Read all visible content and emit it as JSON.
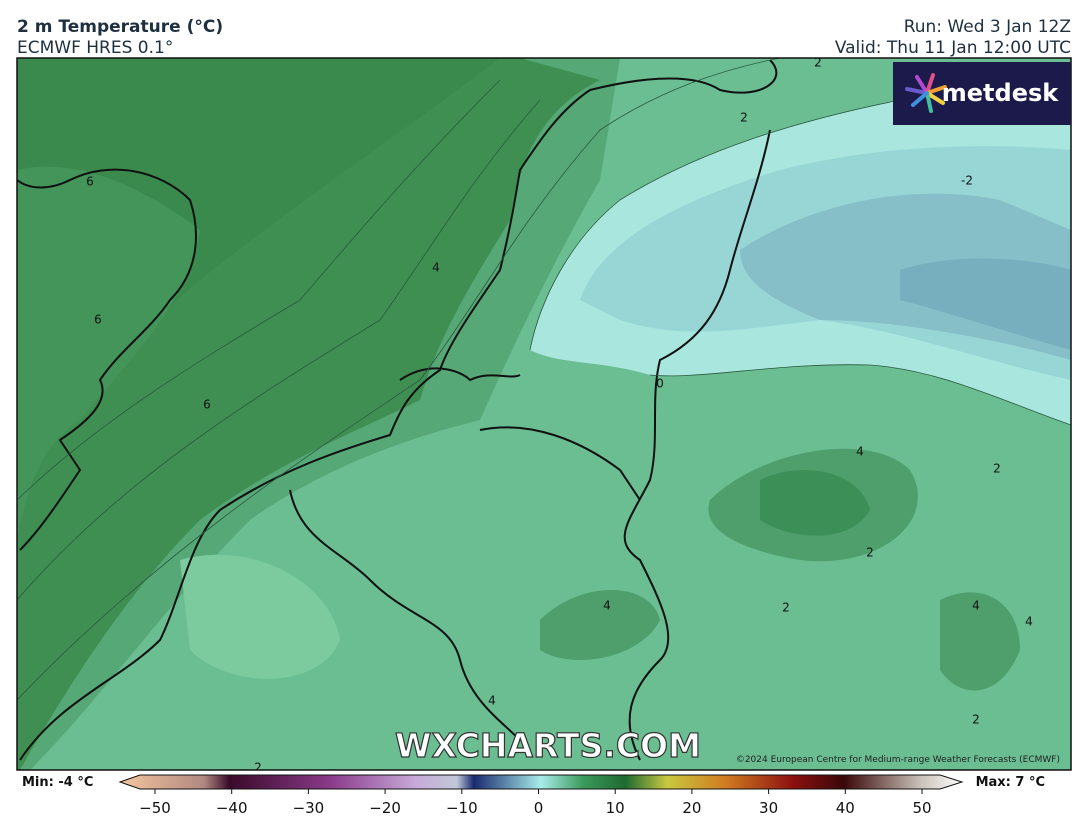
{
  "header": {
    "title": "2 m Temperature (°C)",
    "model": "ECMWF HRES 0.1°",
    "run": "Run: Wed 3 Jan 12Z",
    "valid": "Valid: Thu 11 Jan 12:00 UTC"
  },
  "logo": "metdesk",
  "watermark": "WXCHARTS.COM",
  "copyright": "©2024 European Centre for Medium-range Weather Forecasts (ECMWF)",
  "contour_labels": [
    "2",
    "2",
    "6",
    "4",
    "-2",
    "6",
    "6",
    "0",
    "4",
    "2",
    "2",
    "4",
    "2",
    "4",
    "4",
    "4",
    "2",
    "2"
  ],
  "colorbar": {
    "min_label": "Min: -4 °C",
    "max_label": "Max: 7 °C",
    "ticks": [
      {
        "value": -50,
        "label": "−50"
      },
      {
        "value": -40,
        "label": "−40"
      },
      {
        "value": -30,
        "label": "−30"
      },
      {
        "value": -20,
        "label": "−20"
      },
      {
        "value": -10,
        "label": "−10"
      },
      0,
      10,
      20,
      30,
      40,
      50
    ]
  }
}
